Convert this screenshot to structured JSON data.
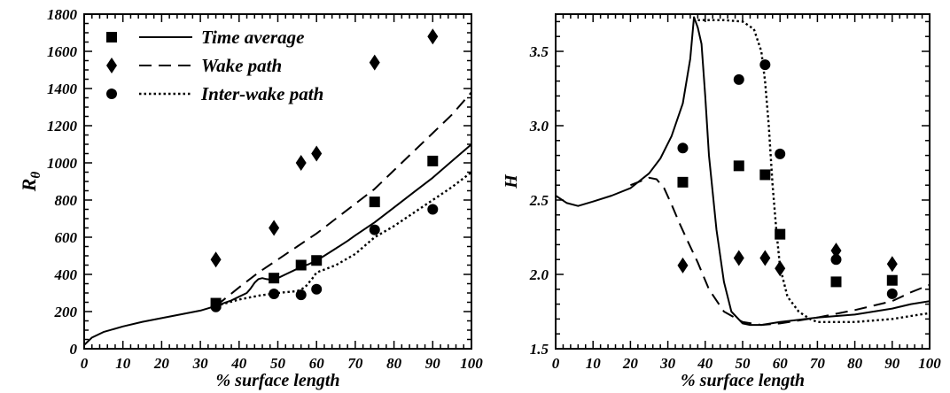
{
  "chart_data": [
    {
      "type": "line",
      "xlabel": "% surface length",
      "ylabel": "Rθ",
      "ylabel_main": "R",
      "ylabel_sub": "θ",
      "xlim": [
        0,
        100
      ],
      "ylim": [
        0,
        1800
      ],
      "x_ticks": [
        "0",
        "10",
        "20",
        "30",
        "40",
        "50",
        "60",
        "70",
        "80",
        "90",
        "100"
      ],
      "y_ticks": [
        "0",
        "200",
        "400",
        "600",
        "800",
        "1000",
        "1200",
        "1400",
        "1600",
        "1800"
      ],
      "grid": false,
      "legend_position": "top-left",
      "series": [
        {
          "name": "Time average",
          "style": "solid",
          "marker": "square",
          "line_x": [
            0,
            2,
            5,
            10,
            15,
            20,
            25,
            30,
            34,
            38,
            40,
            42,
            43,
            44,
            45,
            46,
            47,
            48,
            50,
            52,
            54,
            56,
            58,
            60,
            62,
            65,
            68,
            70,
            75,
            80,
            85,
            90,
            95,
            100
          ],
          "line_y": [
            20,
            60,
            90,
            120,
            145,
            165,
            185,
            205,
            230,
            260,
            280,
            300,
            325,
            355,
            375,
            380,
            375,
            372,
            380,
            400,
            420,
            440,
            455,
            475,
            500,
            540,
            580,
            610,
            680,
            760,
            840,
            920,
            1010,
            1100
          ],
          "points_x": [
            34,
            49,
            56,
            60,
            75,
            90
          ],
          "points_y": [
            245,
            380,
            450,
            475,
            790,
            1010
          ]
        },
        {
          "name": "Wake path",
          "style": "dashed",
          "marker": "diamond",
          "line_x": [
            34,
            40,
            45,
            50,
            55,
            60,
            65,
            70,
            75,
            80,
            85,
            90,
            95,
            100
          ],
          "line_y": [
            230,
            330,
            410,
            480,
            550,
            620,
            700,
            780,
            860,
            960,
            1060,
            1160,
            1260,
            1380
          ],
          "points_x": [
            34,
            49,
            56,
            60,
            75,
            90
          ],
          "points_y": [
            480,
            650,
            1000,
            1050,
            1540,
            1680
          ]
        },
        {
          "name": "Inter-wake path",
          "style": "dotted",
          "marker": "circle",
          "line_x": [
            34,
            40,
            45,
            50,
            55,
            57,
            59,
            60,
            65,
            70,
            75,
            80,
            85,
            90,
            95,
            100
          ],
          "line_y": [
            230,
            265,
            285,
            300,
            310,
            330,
            380,
            410,
            450,
            510,
            600,
            660,
            730,
            800,
            870,
            950
          ],
          "points_x": [
            34,
            49,
            56,
            60,
            75,
            90
          ],
          "points_y": [
            225,
            295,
            290,
            320,
            640,
            750
          ]
        }
      ]
    },
    {
      "type": "line",
      "xlabel": "% surface length",
      "ylabel": "H",
      "xlim": [
        0,
        100
      ],
      "ylim": [
        1.5,
        3.75
      ],
      "x_ticks": [
        "0",
        "10",
        "20",
        "30",
        "40",
        "50",
        "60",
        "70",
        "80",
        "90",
        "100"
      ],
      "y_ticks": [
        "1.5",
        "2.0",
        "2.5",
        "3.0",
        "3.5"
      ],
      "y_tick_values": [
        1.5,
        2.0,
        2.5,
        3.0,
        3.5
      ],
      "grid": false,
      "series": [
        {
          "name": "Time average",
          "style": "solid",
          "marker": "square",
          "line_x": [
            0,
            3,
            6,
            10,
            15,
            20,
            25,
            28,
            31,
            34,
            36,
            37,
            38,
            39,
            40,
            41,
            43,
            45,
            47,
            50,
            52,
            55,
            60,
            70,
            80,
            90,
            95,
            100
          ],
          "line_y": [
            2.53,
            2.48,
            2.46,
            2.49,
            2.53,
            2.58,
            2.68,
            2.78,
            2.93,
            3.15,
            3.45,
            3.73,
            3.66,
            3.55,
            3.2,
            2.8,
            2.3,
            1.95,
            1.75,
            1.67,
            1.66,
            1.66,
            1.68,
            1.71,
            1.73,
            1.77,
            1.8,
            1.82
          ],
          "points_x": [
            34,
            49,
            56,
            60,
            75,
            90
          ],
          "points_y": [
            2.62,
            2.73,
            2.67,
            2.27,
            1.95,
            1.96
          ]
        },
        {
          "name": "Wake path",
          "style": "dashed",
          "marker": "diamond",
          "line_x": [
            20,
            25,
            27,
            29,
            31,
            33,
            35,
            38,
            41,
            45,
            50,
            55,
            60,
            70,
            80,
            90,
            95,
            100
          ],
          "line_y": [
            2.6,
            2.65,
            2.64,
            2.58,
            2.47,
            2.35,
            2.24,
            2.08,
            1.9,
            1.75,
            1.68,
            1.66,
            1.67,
            1.71,
            1.76,
            1.82,
            1.88,
            1.93
          ],
          "points_x": [
            34,
            49,
            56,
            60,
            75,
            90
          ],
          "points_y": [
            2.06,
            2.11,
            2.11,
            2.04,
            2.16,
            2.07
          ]
        },
        {
          "name": "Inter-wake path",
          "style": "dotted",
          "marker": "circle",
          "line_x": [
            38,
            40,
            45,
            50,
            53,
            55,
            56,
            57,
            58,
            59,
            60,
            62,
            65,
            68,
            70,
            80,
            90,
            95,
            100
          ],
          "line_y": [
            3.71,
            3.71,
            3.71,
            3.7,
            3.65,
            3.5,
            3.3,
            3.0,
            2.6,
            2.3,
            2.05,
            1.85,
            1.75,
            1.7,
            1.68,
            1.68,
            1.7,
            1.72,
            1.74
          ],
          "points_x": [
            34,
            49,
            56,
            60,
            75,
            90
          ],
          "points_y": [
            2.85,
            3.31,
            3.41,
            2.81,
            2.1,
            1.87
          ]
        }
      ]
    }
  ]
}
